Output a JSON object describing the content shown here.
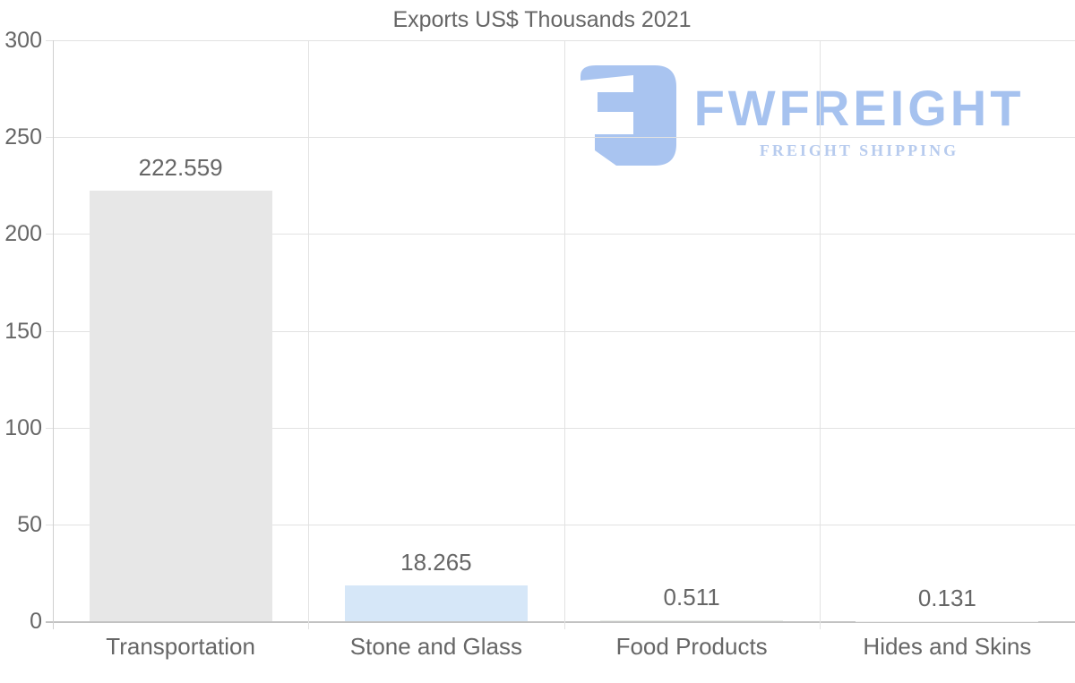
{
  "title": "Exports US$ Thousands 2021",
  "watermark": {
    "brand": "FWFREIGHT",
    "tagline": "FREIGHT SHIPPING",
    "brand_color": "#a6c2ef",
    "tagline_color": "#b7cbee",
    "mark_color": "#a9c4f0"
  },
  "chart_data": {
    "type": "bar",
    "title": "Exports US$ Thousands 2021",
    "categories": [
      "Transportation",
      "Stone and Glass",
      "Food Products",
      "Hides and Skins"
    ],
    "values": [
      222.559,
      18.265,
      0.511,
      0.131
    ],
    "value_labels": [
      "222.559",
      "18.265",
      "0.511",
      "0.131"
    ],
    "bar_colors": [
      "#e7e7e7",
      "#d6e7f8",
      "#e9ece7",
      "#ededed"
    ],
    "xlabel": "",
    "ylabel": "",
    "ylim": [
      0,
      300
    ],
    "yticks": [
      0,
      50,
      100,
      150,
      200,
      250,
      300
    ],
    "grid": true,
    "legend": false,
    "text_color": "#666666",
    "grid_color": "#e2e2e2",
    "axis_color": "#c2c2c2"
  }
}
